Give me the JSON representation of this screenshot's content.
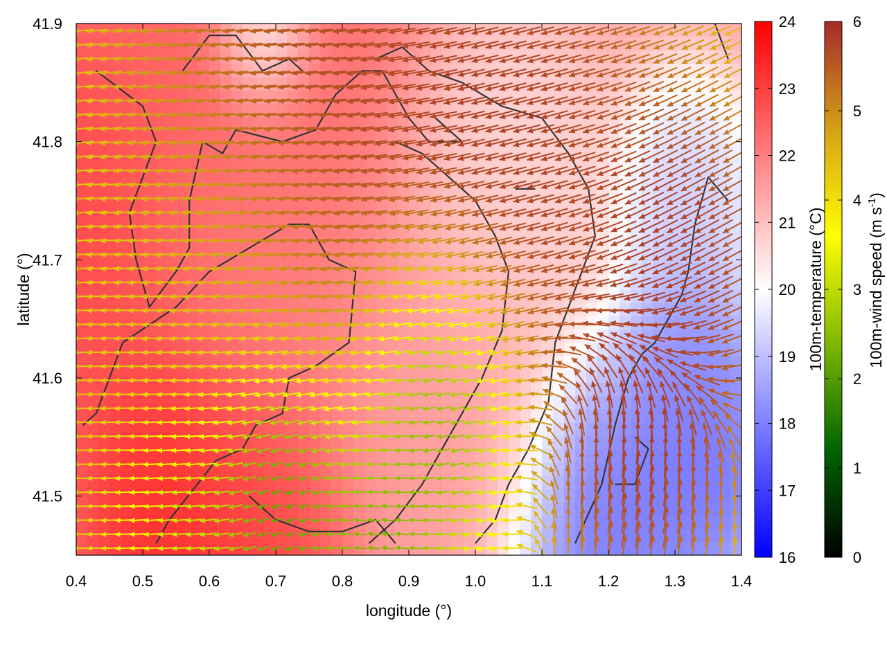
{
  "chart_data": {
    "type": "heatmap",
    "overlay": "vector-field",
    "xlabel": "longitude (°)",
    "ylabel": "latitude (°)",
    "xlim": [
      0.4,
      1.4
    ],
    "ylim": [
      41.45,
      41.9
    ],
    "xticks": [
      "0.4",
      "0.5",
      "0.6",
      "0.7",
      "0.8",
      "0.9",
      "1.0",
      "1.1",
      "1.2",
      "1.3",
      "1.4"
    ],
    "yticks": [
      "41.5",
      "41.6",
      "41.7",
      "41.8",
      "41.9"
    ],
    "grid": false,
    "legend": "colorbars-right",
    "colorbars": [
      {
        "label": "100m-temperature (°C)",
        "range": [
          16,
          24
        ],
        "ticks": [
          "16",
          "17",
          "18",
          "19",
          "20",
          "21",
          "22",
          "23",
          "24"
        ],
        "colors": [
          "#0000ff",
          "#ffffff",
          "#ff0000"
        ]
      },
      {
        "label_main": "100m-wind speed (m s",
        "label_sup": "-1",
        "label_end": ")",
        "range": [
          0,
          6
        ],
        "ticks": [
          "0",
          "1",
          "2",
          "3",
          "4",
          "5",
          "6"
        ],
        "colors": [
          "#000000",
          "#006400",
          "#7fb800",
          "#ffff00",
          "#d4a017",
          "#a52a2a"
        ]
      }
    ],
    "temperature_regions": [
      {
        "lon": 0.4,
        "lat": 41.74,
        "r": 0.1,
        "t": 23.0
      },
      {
        "lon": 0.55,
        "lat": 41.5,
        "r": 0.08,
        "t": 23.5
      },
      {
        "lon": 0.68,
        "lat": 41.48,
        "r": 0.07,
        "t": 23.0
      },
      {
        "lon": 0.65,
        "lat": 41.84,
        "r": 0.12,
        "t": 22.5
      },
      {
        "lon": 0.95,
        "lat": 41.6,
        "r": 0.1,
        "t": 21.5
      },
      {
        "lon": 0.7,
        "lat": 41.68,
        "r": 0.1,
        "t": 22.0
      },
      {
        "lon": 1.05,
        "lat": 41.76,
        "r": 0.08,
        "t": 20.5
      },
      {
        "lon": 1.2,
        "lat": 41.48,
        "r": 0.08,
        "t": 17.5
      },
      {
        "lon": 1.35,
        "lat": 41.53,
        "r": 0.06,
        "t": 17.5
      },
      {
        "lon": 1.32,
        "lat": 41.62,
        "r": 0.05,
        "t": 18.0
      },
      {
        "lon": 1.32,
        "lat": 41.74,
        "r": 0.06,
        "t": 19.0
      },
      {
        "lon": 0.68,
        "lat": 41.89,
        "r": 0.04,
        "t": 19.0
      }
    ],
    "wind_regions": [
      {
        "lon": 0.75,
        "lat": 41.78,
        "r": 0.14,
        "speed": 6.0,
        "dir": 185
      },
      {
        "lon": 1.05,
        "lat": 41.8,
        "r": 0.12,
        "speed": 6.0,
        "dir": 195
      },
      {
        "lon": 1.3,
        "lat": 41.7,
        "r": 0.08,
        "speed": 6.0,
        "dir": 210
      },
      {
        "lon": 1.25,
        "lat": 41.55,
        "r": 0.07,
        "speed": 6.0,
        "dir": 80
      },
      {
        "lon": 0.62,
        "lat": 41.64,
        "r": 0.12,
        "speed": 4.0,
        "dir": 185
      },
      {
        "lon": 0.5,
        "lat": 41.56,
        "r": 0.08,
        "speed": 4.5,
        "dir": 180
      },
      {
        "lon": 0.7,
        "lat": 41.52,
        "r": 0.06,
        "speed": 0.5,
        "dir": 200
      },
      {
        "lon": 0.93,
        "lat": 41.6,
        "r": 0.07,
        "speed": 1.5,
        "dir": 190
      },
      {
        "lon": 0.55,
        "lat": 41.5,
        "r": 0.05,
        "speed": 2.0,
        "dir": 185
      },
      {
        "lon": 0.85,
        "lat": 41.47,
        "r": 0.05,
        "speed": 2.0,
        "dir": 170
      }
    ],
    "contours": [
      [
        [
          0.41,
          41.56
        ],
        [
          0.43,
          41.57
        ],
        [
          0.47,
          41.63
        ],
        [
          0.55,
          41.66
        ],
        [
          0.6,
          41.69
        ],
        [
          0.66,
          41.71
        ],
        [
          0.72,
          41.73
        ],
        [
          0.75,
          41.73
        ],
        [
          0.78,
          41.7
        ],
        [
          0.82,
          41.69
        ],
        [
          0.81,
          41.63
        ],
        [
          0.76,
          41.61
        ],
        [
          0.72,
          41.6
        ],
        [
          0.71,
          41.57
        ],
        [
          0.67,
          41.56
        ],
        [
          0.65,
          41.54
        ],
        [
          0.61,
          41.53
        ],
        [
          0.54,
          41.48
        ],
        [
          0.52,
          41.46
        ]
      ],
      [
        [
          0.43,
          41.86
        ],
        [
          0.5,
          41.83
        ],
        [
          0.52,
          41.8
        ],
        [
          0.5,
          41.77
        ],
        [
          0.48,
          41.74
        ],
        [
          0.49,
          41.7
        ],
        [
          0.51,
          41.66
        ],
        [
          0.55,
          41.69
        ],
        [
          0.57,
          41.71
        ],
        [
          0.57,
          41.75
        ],
        [
          0.59,
          41.8
        ],
        [
          0.62,
          41.79
        ],
        [
          0.64,
          41.81
        ],
        [
          0.71,
          41.8
        ],
        [
          0.76,
          41.81
        ],
        [
          0.79,
          41.84
        ],
        [
          0.83,
          41.86
        ],
        [
          0.86,
          41.86
        ],
        [
          0.9,
          41.82
        ],
        [
          0.93,
          41.8
        ],
        [
          0.98,
          41.8
        ],
        [
          0.94,
          41.82
        ]
      ],
      [
        [
          0.56,
          41.86
        ],
        [
          0.6,
          41.89
        ],
        [
          0.64,
          41.89
        ],
        [
          0.68,
          41.86
        ],
        [
          0.72,
          41.87
        ],
        [
          0.74,
          41.86
        ]
      ],
      [
        [
          0.85,
          41.87
        ],
        [
          0.89,
          41.88
        ],
        [
          0.93,
          41.86
        ],
        [
          0.98,
          41.85
        ],
        [
          1.04,
          41.83
        ],
        [
          1.1,
          41.82
        ],
        [
          1.14,
          41.79
        ],
        [
          1.17,
          41.76
        ],
        [
          1.18,
          41.72
        ],
        [
          1.16,
          41.69
        ],
        [
          1.14,
          41.66
        ],
        [
          1.12,
          41.63
        ],
        [
          1.11,
          41.58
        ],
        [
          1.08,
          41.54
        ],
        [
          1.05,
          41.51
        ],
        [
          1.03,
          41.48
        ],
        [
          1.0,
          41.46
        ]
      ],
      [
        [
          0.88,
          41.8
        ],
        [
          0.92,
          41.79
        ],
        [
          0.96,
          41.77
        ],
        [
          1.0,
          41.75
        ],
        [
          1.03,
          41.72
        ],
        [
          1.05,
          41.69
        ],
        [
          1.04,
          41.64
        ],
        [
          1.01,
          41.6
        ],
        [
          0.98,
          41.57
        ],
        [
          0.95,
          41.54
        ],
        [
          0.92,
          41.51
        ],
        [
          0.88,
          41.48
        ],
        [
          0.84,
          41.46
        ]
      ],
      [
        [
          1.15,
          41.46
        ],
        [
          1.19,
          41.51
        ],
        [
          1.21,
          41.56
        ],
        [
          1.23,
          41.6
        ],
        [
          1.25,
          41.62
        ],
        [
          1.27,
          41.63
        ],
        [
          1.29,
          41.65
        ],
        [
          1.31,
          41.67
        ],
        [
          1.32,
          41.69
        ],
        [
          1.33,
          41.73
        ],
        [
          1.35,
          41.77
        ],
        [
          1.38,
          41.75
        ]
      ],
      [
        [
          1.21,
          41.51
        ],
        [
          1.24,
          41.51
        ],
        [
          1.26,
          41.54
        ],
        [
          1.24,
          41.55
        ]
      ],
      [
        [
          0.66,
          41.5
        ],
        [
          0.7,
          41.48
        ],
        [
          0.75,
          41.47
        ],
        [
          0.8,
          41.47
        ],
        [
          0.85,
          41.48
        ],
        [
          0.88,
          41.46
        ]
      ],
      [
        [
          1.36,
          41.9
        ],
        [
          1.38,
          41.87
        ]
      ],
      [
        [
          1.06,
          41.76
        ],
        [
          1.09,
          41.76
        ]
      ]
    ]
  }
}
